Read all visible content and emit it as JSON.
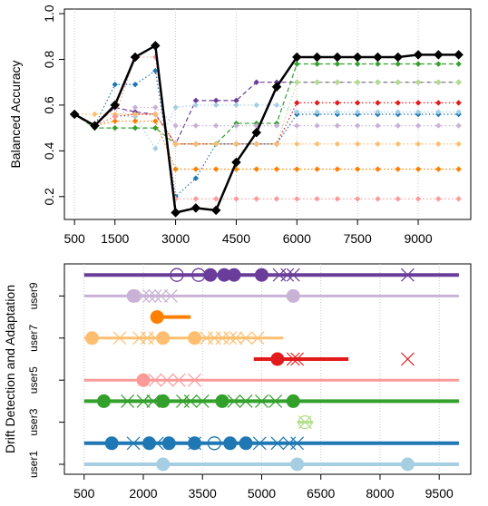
{
  "chart_data": [
    {
      "type": "line",
      "ylabel": "Balanced Accuracy",
      "xlim": [
        250,
        10300
      ],
      "ylim": [
        0.1,
        1.02
      ],
      "xticks": [
        "500",
        "1500",
        "3000",
        "4500",
        "6000",
        "7500",
        "9000"
      ],
      "xtick_values": [
        500,
        1500,
        3000,
        4500,
        6000,
        7500,
        9000
      ],
      "yticks": [
        "0.2",
        "0.4",
        "0.6",
        "0.8",
        "1.0"
      ],
      "ytick_values": [
        0.2,
        0.4,
        0.6,
        0.8,
        1.0
      ],
      "grid": "vertical dotted",
      "x": [
        500,
        1000,
        1500,
        2000,
        2500,
        3000,
        3500,
        4000,
        4500,
        5000,
        5500,
        6000,
        6500,
        7000,
        7500,
        8000,
        8500,
        9000,
        9500,
        10000
      ],
      "series": [
        {
          "color": "#000000",
          "lineStyle": "solid",
          "bold": true,
          "values": [
            0.56,
            0.51,
            0.6,
            0.81,
            0.86,
            0.13,
            0.15,
            0.14,
            0.35,
            0.48,
            0.68,
            0.81,
            0.81,
            0.81,
            0.81,
            0.81,
            0.81,
            0.82,
            0.82,
            0.82
          ]
        },
        {
          "color": "#6A3D9A",
          "lineStyle": "dashed",
          "values": [
            0.56,
            0.51,
            0.59,
            0.57,
            0.56,
            0.43,
            0.62,
            0.62,
            0.62,
            0.7,
            0.7,
            0.7,
            0.7,
            0.7,
            0.7,
            0.7,
            0.7,
            0.7,
            0.7,
            0.7
          ]
        },
        {
          "color": "#33A02C",
          "lineStyle": "dashed",
          "values": [
            0.56,
            0.5,
            0.5,
            0.5,
            0.5,
            0.43,
            0.43,
            0.43,
            0.52,
            0.52,
            0.52,
            0.78,
            0.78,
            0.78,
            0.78,
            0.78,
            0.78,
            0.78,
            0.78,
            0.78
          ]
        },
        {
          "color": "#B2DF8A",
          "lineStyle": "dotted",
          "values": [
            0.56,
            0.51,
            0.55,
            0.56,
            0.56,
            0.43,
            0.43,
            0.43,
            0.43,
            0.43,
            0.43,
            0.7,
            0.7,
            0.7,
            0.7,
            0.7,
            0.7,
            0.7,
            0.7,
            0.7
          ]
        },
        {
          "color": "#E31A1C",
          "lineStyle": "dotted",
          "values": [
            0.56,
            0.51,
            0.55,
            0.56,
            0.56,
            0.43,
            0.43,
            0.43,
            0.43,
            0.43,
            0.43,
            0.61,
            0.61,
            0.61,
            0.61,
            0.61,
            0.61,
            0.61,
            0.61,
            0.61
          ]
        },
        {
          "color": "#1F78B4",
          "lineStyle": "dotted",
          "values": [
            0.56,
            0.51,
            0.69,
            0.69,
            0.75,
            0.2,
            0.28,
            0.43,
            0.43,
            0.43,
            0.43,
            0.56,
            0.56,
            0.56,
            0.56,
            0.56,
            0.56,
            0.56,
            0.56,
            0.56
          ]
        },
        {
          "color": "#A6CEE3",
          "lineStyle": "dotted",
          "values": [
            0.56,
            0.51,
            0.55,
            0.55,
            0.41,
            0.59,
            0.6,
            0.6,
            0.6,
            0.6,
            0.6,
            0.57,
            0.57,
            0.57,
            0.57,
            0.57,
            0.57,
            0.57,
            0.57,
            0.57
          ]
        },
        {
          "color": "#CAB2D6",
          "lineStyle": "dotted",
          "values": [
            0.56,
            0.51,
            0.55,
            0.59,
            0.59,
            0.51,
            0.51,
            0.51,
            0.51,
            0.51,
            0.51,
            0.51,
            0.51,
            0.51,
            0.51,
            0.51,
            0.51,
            0.51,
            0.51,
            0.51
          ]
        },
        {
          "color": "#FDBF6F",
          "lineStyle": "dotted",
          "values": [
            0.56,
            0.56,
            0.56,
            0.56,
            0.56,
            0.43,
            0.43,
            0.43,
            0.43,
            0.43,
            0.43,
            0.43,
            0.43,
            0.43,
            0.43,
            0.43,
            0.43,
            0.43,
            0.43,
            0.43
          ]
        },
        {
          "color": "#FF7F00",
          "lineStyle": "dotted",
          "values": [
            0.56,
            0.51,
            0.53,
            0.53,
            0.53,
            0.32,
            0.32,
            0.32,
            0.32,
            0.32,
            0.32,
            0.32,
            0.32,
            0.32,
            0.32,
            0.32,
            0.32,
            0.32,
            0.32,
            0.32
          ]
        },
        {
          "color": "#FB9A99",
          "lineStyle": "dotted",
          "values": [
            0.56,
            0.51,
            0.55,
            0.81,
            0.81,
            0.19,
            0.19,
            0.19,
            0.19,
            0.19,
            0.19,
            0.19,
            0.19,
            0.19,
            0.19,
            0.19,
            0.19,
            0.19,
            0.19,
            0.19
          ]
        }
      ]
    },
    {
      "type": "scatter",
      "ylabel": "Drift Detection and Adaptation",
      "xlim": [
        0,
        10300
      ],
      "xticks": [
        "500",
        "2000",
        "3500",
        "5000",
        "6500",
        "8000",
        "9500"
      ],
      "xtick_values": [
        500,
        2000,
        3500,
        5000,
        6500,
        8000,
        9500
      ],
      "ytick_labels": [
        "user1",
        "user3",
        "user5",
        "user7",
        "user9"
      ],
      "ytick_rows": [
        1,
        3,
        5,
        7,
        9
      ],
      "grid": "vertical dotted",
      "markers": {
        "filled-circle": "drift detected (filled circle)",
        "open-circle": "drift (open circle)",
        "x-mark": "adaptation (cross)"
      },
      "rows": [
        {
          "row": 1,
          "color": "#A6CEE3",
          "x_start": 500,
          "x_end": 10000,
          "bold": true,
          "filled": [
            2500,
            5900,
            8700
          ],
          "open": [],
          "cross": []
        },
        {
          "row": 2,
          "color": "#1F78B4",
          "x_start": 500,
          "x_end": 10000,
          "bold": true,
          "filled": [
            1200,
            2150,
            2650,
            3300,
            4200,
            4600
          ],
          "open": [
            3800
          ],
          "cross": [
            1750,
            2350,
            3300,
            4950,
            5400,
            5700,
            5900
          ]
        },
        {
          "row": 3,
          "color": "#B2DF8A",
          "x_start": 5900,
          "x_end": 6300,
          "bold": false,
          "filled": [],
          "open": [
            6100
          ],
          "cross": [
            6100
          ]
        },
        {
          "row": 4,
          "color": "#33A02C",
          "x_start": 500,
          "x_end": 10000,
          "bold": true,
          "filled": [
            1000,
            2500,
            4000,
            5800
          ],
          "open": [],
          "cross": [
            1600,
            2000,
            2250,
            3000,
            3200,
            3500,
            4300,
            4600,
            5000,
            5350
          ]
        },
        {
          "row": 5,
          "color": "#FB9A99",
          "x_start": 500,
          "x_end": 10000,
          "bold": false,
          "filled": [
            2000
          ],
          "open": [],
          "cross": [
            2300,
            2600,
            2900,
            3300
          ]
        },
        {
          "row": 6,
          "color": "#E31A1C",
          "x_start": 4800,
          "x_end": 7200,
          "bold": true,
          "filled": [
            5400
          ],
          "open": [],
          "cross": [
            5800,
            5900,
            8700
          ]
        },
        {
          "row": 7,
          "color": "#FDBF6F",
          "x_start": 500,
          "x_end": 5550,
          "bold": false,
          "filled": [
            700,
            2500,
            3300
          ],
          "open": [],
          "cross": [
            1400,
            1900,
            2100,
            2300,
            3600,
            3800,
            4000,
            4200,
            4350,
            4600,
            4900
          ]
        },
        {
          "row": 8,
          "color": "#FF7F00",
          "x_start": 2200,
          "x_end": 3200,
          "bold": true,
          "filled": [
            2350
          ],
          "open": [],
          "cross": []
        },
        {
          "row": 9,
          "color": "#CAB2D6",
          "x_start": 500,
          "x_end": 10000,
          "bold": false,
          "filled": [
            1750,
            5800
          ],
          "open": [],
          "cross": [
            2000,
            2150,
            2300,
            2450,
            2700
          ]
        },
        {
          "row": 10,
          "color": "#6A3D9A",
          "x_start": 500,
          "x_end": 10000,
          "bold": true,
          "filled": [
            3700,
            4050,
            4300,
            5000
          ],
          "open": [
            2850,
            3400
          ],
          "cross": [
            5450,
            5650,
            5800,
            8700
          ]
        }
      ]
    }
  ]
}
